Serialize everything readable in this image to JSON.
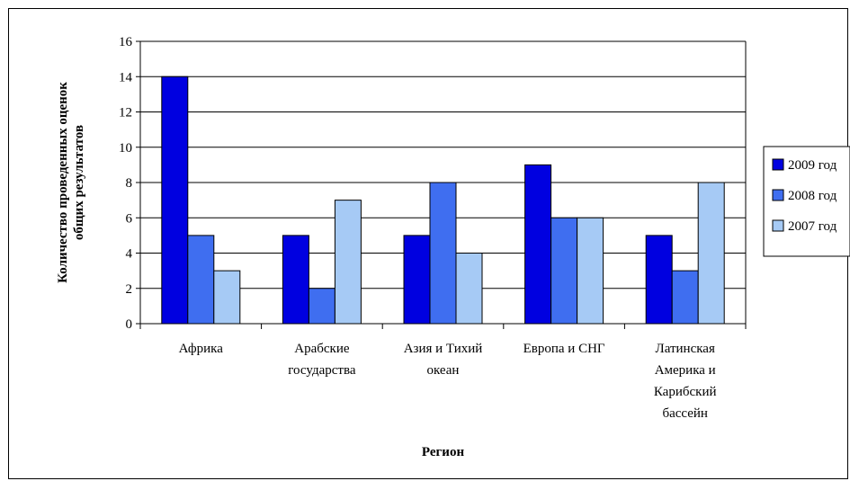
{
  "chart_data": {
    "type": "bar",
    "xlabel": "Регион",
    "ylabel": [
      "Количество проведенных оценок",
      "общих результатов"
    ],
    "ylim": [
      0,
      16
    ],
    "yticks": [
      0,
      2,
      4,
      6,
      8,
      10,
      12,
      14,
      16
    ],
    "grid": true,
    "legend_position": "right",
    "categories": [
      [
        "Африка"
      ],
      [
        "Арабские",
        "государства"
      ],
      [
        "Азия и Тихий",
        "океан"
      ],
      [
        "Европа и СНГ"
      ],
      [
        "Латинская",
        "Америка и",
        "Карибский",
        "бассейн"
      ]
    ],
    "series": [
      {
        "name": "2009 год",
        "color": "#0000e0",
        "values": [
          14,
          5,
          5,
          9,
          5
        ]
      },
      {
        "name": "2008 год",
        "color": "#3f6ef0",
        "values": [
          5,
          2,
          8,
          6,
          3
        ]
      },
      {
        "name": "2007 год",
        "color": "#a6caf5",
        "values": [
          3,
          7,
          4,
          6,
          8
        ]
      }
    ]
  }
}
